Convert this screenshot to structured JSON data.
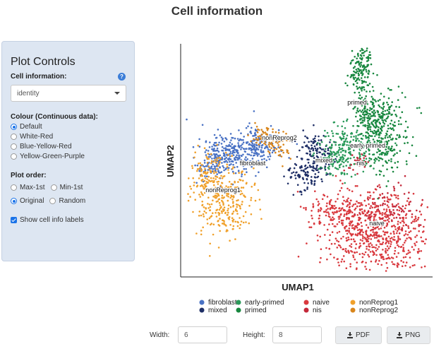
{
  "page": {
    "title": "Cell information"
  },
  "sidebar": {
    "title": "Plot Controls",
    "cell_info_label": "Cell information:",
    "cell_info_value": "identity",
    "colour_label": "Colour (Continuous data):",
    "colour_options": [
      "Default",
      "White-Red",
      "Blue-Yellow-Red",
      "Yellow-Green-Purple"
    ],
    "colour_selected": "Default",
    "order_label": "Plot order:",
    "order_options": [
      "Max-1st",
      "Min-1st",
      "Original",
      "Random"
    ],
    "order_selected": "Original",
    "show_labels_text": "Show cell info labels",
    "show_labels_checked": true
  },
  "chart_data": {
    "type": "scatter",
    "xlabel": "UMAP1",
    "ylabel": "UMAP2",
    "legend_position": "bottom",
    "grid": false,
    "series": [
      {
        "name": "fibroblast",
        "color": "#4a72c4"
      },
      {
        "name": "mixed",
        "color": "#1f2f66"
      },
      {
        "name": "early-primed",
        "color": "#2a9a5a"
      },
      {
        "name": "primed",
        "color": "#18873f"
      },
      {
        "name": "naive",
        "color": "#d9393e"
      },
      {
        "name": "nis",
        "color": "#c4283a"
      },
      {
        "name": "nonReprog1",
        "color": "#f0a02a"
      },
      {
        "name": "nonReprog2",
        "color": "#d9861c"
      }
    ],
    "annotations": [
      "primed",
      "nonReprog2",
      "early-primed",
      "fibroblast",
      "mixed",
      "nis",
      "nonReprog1",
      "naive"
    ]
  },
  "bottom": {
    "width_label": "Width:",
    "width_value": "6",
    "height_label": "Height:",
    "height_value": "8",
    "pdf_label": "PDF",
    "png_label": "PNG"
  }
}
